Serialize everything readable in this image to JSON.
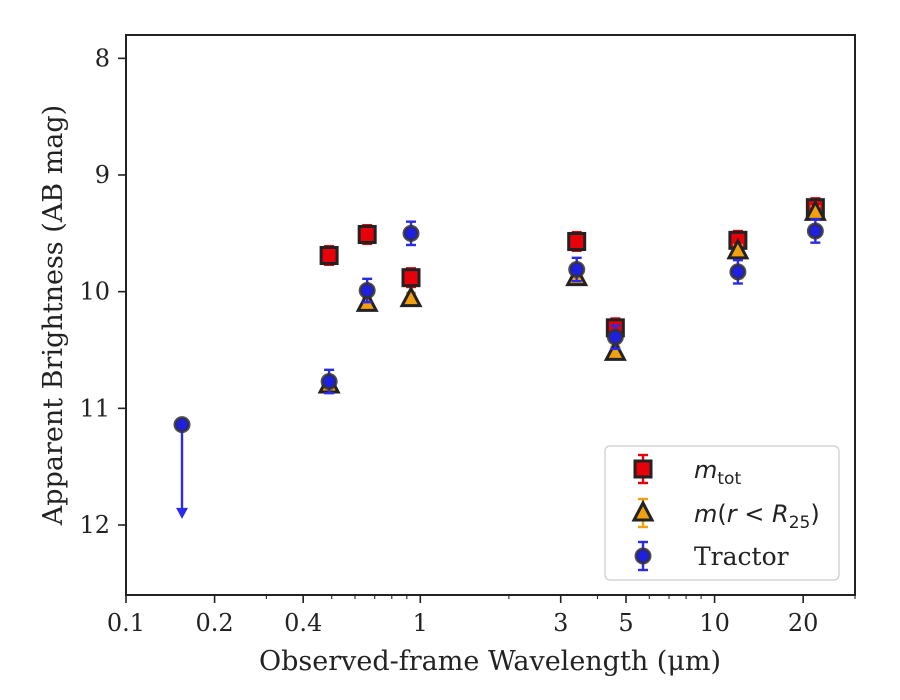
{
  "chart_data": {
    "type": "scatter",
    "title": "",
    "xlabel": "Observed-frame Wavelength (μm)",
    "ylabel": "Apparent Brightness (AB mag)",
    "x_scale": "log",
    "xlim": [
      0.1,
      30
    ],
    "ylim": [
      12.6,
      7.8
    ],
    "y_inverted": true,
    "grid": false,
    "legend_position": "lower-right",
    "x_tick_values": [
      0.1,
      0.2,
      0.4,
      1,
      3,
      5,
      10,
      20
    ],
    "x_tick_labels": [
      "0.1",
      "0.2",
      "0.4",
      "1",
      "3",
      "5",
      "10",
      "20"
    ],
    "y_tick_values": [
      8,
      9,
      10,
      11,
      12
    ],
    "y_tick_labels": [
      "8",
      "9",
      "10",
      "11",
      "12"
    ],
    "series": [
      {
        "key": "m_tot",
        "legend_label": "m_tot",
        "marker": "square",
        "color": "#e8000b",
        "edge_color": "#222222",
        "points": [
          {
            "x": 0.49,
            "y": 9.69,
            "err": 0.08
          },
          {
            "x": 0.66,
            "y": 9.51,
            "err": 0.08
          },
          {
            "x": 0.93,
            "y": 9.88,
            "err": 0.08
          },
          {
            "x": 3.4,
            "y": 9.57,
            "err": 0.08
          },
          {
            "x": 4.6,
            "y": 10.31,
            "err": 0.08
          },
          {
            "x": 12.0,
            "y": 9.56,
            "err": 0.08
          },
          {
            "x": 22.0,
            "y": 9.28,
            "err": 0.08
          }
        ]
      },
      {
        "key": "m_r25",
        "legend_label": "m(r < R25)",
        "marker": "triangle",
        "color": "#f0a010",
        "edge_color": "#222222",
        "points": [
          {
            "x": 0.49,
            "y": 10.8,
            "err": 0.05
          },
          {
            "x": 0.66,
            "y": 10.1,
            "err": 0.05
          },
          {
            "x": 0.93,
            "y": 10.06,
            "err": 0.05
          },
          {
            "x": 3.4,
            "y": 9.88,
            "err": 0.05
          },
          {
            "x": 4.6,
            "y": 10.52,
            "err": 0.05
          },
          {
            "x": 12.0,
            "y": 9.65,
            "err": 0.05
          },
          {
            "x": 22.0,
            "y": 9.32,
            "err": 0.05
          }
        ]
      },
      {
        "key": "tractor",
        "legend_label": "Tractor",
        "marker": "circle",
        "color": "#1f1fe0",
        "edge_color": "#333333",
        "points": [
          {
            "x": 0.49,
            "y": 10.77,
            "err": 0.1
          },
          {
            "x": 0.66,
            "y": 9.99,
            "err": 0.1
          },
          {
            "x": 0.93,
            "y": 9.5,
            "err": 0.1
          },
          {
            "x": 3.4,
            "y": 9.81,
            "err": 0.1
          },
          {
            "x": 4.6,
            "y": 10.39,
            "err": 0.1
          },
          {
            "x": 12.0,
            "y": 9.83,
            "err": 0.1
          },
          {
            "x": 22.0,
            "y": 9.48,
            "err": 0.1
          }
        ],
        "upper_limit": {
          "x": 0.155,
          "y": 11.14,
          "arrow_to_y": 11.93
        }
      }
    ]
  }
}
